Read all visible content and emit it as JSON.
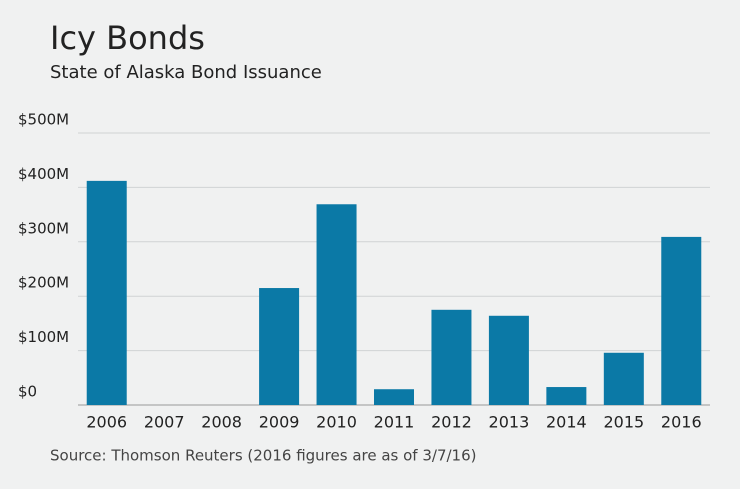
{
  "chart_data": {
    "type": "bar",
    "title": "Icy Bonds",
    "subtitle": "State of Alaska Bond Issuance",
    "source": "Source: Thomson Reuters (2016 figures are as of 3/7/16)",
    "categories": [
      "2006",
      "2007",
      "2008",
      "2009",
      "2010",
      "2011",
      "2012",
      "2013",
      "2014",
      "2015",
      "2016"
    ],
    "values": [
      412,
      0,
      0,
      215,
      369,
      29,
      175,
      164,
      33,
      96,
      309
    ],
    "color": "#0b79a6",
    "ylim": [
      0,
      500
    ],
    "yticks": [
      {
        "value": 0,
        "label": "$0"
      },
      {
        "value": 100,
        "label": "$100M"
      },
      {
        "value": 200,
        "label": "$200M"
      },
      {
        "value": 300,
        "label": "$300M"
      },
      {
        "value": 400,
        "label": "$400M"
      },
      {
        "value": 500,
        "label": "$500M"
      }
    ],
    "grid": true
  }
}
